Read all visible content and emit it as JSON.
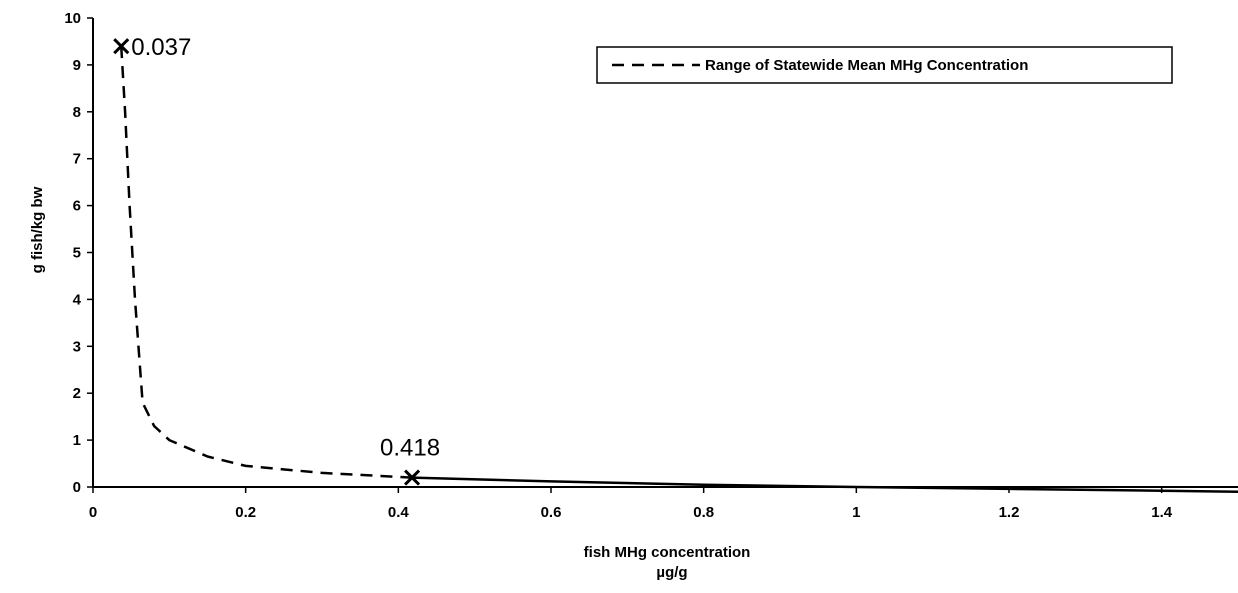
{
  "chart_data": {
    "type": "line",
    "title": "",
    "xlabel": "fish MHg concentration",
    "xlabel_unit": "µg/g",
    "ylabel": "g fish/kg bw",
    "xlim": [
      0,
      1.5
    ],
    "ylim": [
      0,
      10
    ],
    "x_ticks": [
      "0",
      "0.2",
      "0.4",
      "0.6",
      "0.8",
      "1",
      "1.2",
      "1.4"
    ],
    "y_ticks": [
      "0",
      "1",
      "2",
      "3",
      "4",
      "5",
      "6",
      "7",
      "8",
      "9",
      "10"
    ],
    "grid": false,
    "legend_position": "top-right",
    "series": [
      {
        "name": "Range of Statewide Mean MHg Concentration",
        "style": "dashed",
        "x": [
          0.037,
          0.042,
          0.048,
          0.055,
          0.065,
          0.08,
          0.1,
          0.15,
          0.2,
          0.3,
          0.418
        ],
        "values": [
          9.4,
          8.0,
          6.0,
          4.0,
          1.8,
          1.3,
          1.0,
          0.65,
          0.45,
          0.3,
          0.2
        ]
      },
      {
        "name": "",
        "style": "solid",
        "x": [
          0.418,
          0.6,
          0.8,
          1.0,
          1.2,
          1.5
        ],
        "values": [
          0.2,
          0.12,
          0.05,
          0.0,
          -0.04,
          -0.1
        ]
      }
    ],
    "annotations": [
      {
        "label": "0.037",
        "x": 0.037,
        "y": 9.4
      },
      {
        "label": "0.418",
        "x": 0.418,
        "y": 0.2
      }
    ]
  }
}
